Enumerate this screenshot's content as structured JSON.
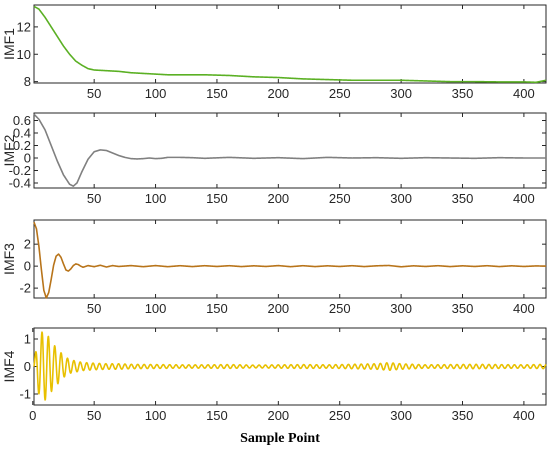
{
  "chart_data": [
    {
      "type": "line",
      "ylabel": "IMF1",
      "xlim": [
        1,
        418
      ],
      "ylim": [
        7.9,
        13.6
      ],
      "yticks": [
        8,
        10,
        12
      ],
      "xticks": [
        50,
        100,
        150,
        200,
        250,
        300,
        350,
        400
      ],
      "color": "#5bb024",
      "series": [
        {
          "x": [
            1,
            5,
            10,
            15,
            20,
            25,
            30,
            35,
            40,
            45,
            50,
            60,
            70,
            80,
            90,
            100,
            110,
            120,
            140,
            160,
            180,
            200,
            220,
            240,
            260,
            280,
            300,
            320,
            340,
            360,
            380,
            400,
            410,
            418
          ],
          "values": [
            13.5,
            13.3,
            12.7,
            12.0,
            11.3,
            10.6,
            10.0,
            9.5,
            9.2,
            8.95,
            8.85,
            8.8,
            8.75,
            8.65,
            8.6,
            8.55,
            8.5,
            8.5,
            8.5,
            8.45,
            8.35,
            8.3,
            8.2,
            8.15,
            8.1,
            8.1,
            8.1,
            8.05,
            8.0,
            8.0,
            7.98,
            7.98,
            7.95,
            8.1
          ]
        }
      ]
    },
    {
      "type": "line",
      "ylabel": "IMF2",
      "xlim": [
        1,
        418
      ],
      "ylim": [
        -0.48,
        0.72
      ],
      "yticks": [
        -0.4,
        -0.2,
        0,
        0.2,
        0.4,
        0.6
      ],
      "ytickLabels": [
        "-0.4",
        "-0.2",
        "0",
        "0.2",
        "0.4",
        "0.6"
      ],
      "xticks": [
        50,
        100,
        150,
        200,
        250,
        300,
        350,
        400
      ],
      "color": "#808080",
      "series": [
        {
          "x": [
            1,
            5,
            10,
            15,
            20,
            25,
            30,
            33,
            36,
            40,
            45,
            50,
            55,
            60,
            65,
            70,
            75,
            80,
            85,
            90,
            95,
            100,
            105,
            110,
            120,
            130,
            140,
            160,
            180,
            200,
            220,
            240,
            260,
            280,
            300,
            320,
            340,
            360,
            380,
            400,
            418
          ],
          "values": [
            0.7,
            0.62,
            0.45,
            0.2,
            -0.05,
            -0.27,
            -0.42,
            -0.45,
            -0.4,
            -0.22,
            -0.02,
            0.1,
            0.13,
            0.12,
            0.08,
            0.04,
            0.01,
            -0.01,
            -0.015,
            -0.01,
            0,
            -0.01,
            -0.005,
            0.01,
            0.01,
            0.005,
            -0.005,
            0.01,
            -0.005,
            0.005,
            -0.01,
            0.01,
            0,
            0.005,
            -0.005,
            0.005,
            0,
            -0.005,
            0.005,
            0,
            0
          ]
        }
      ]
    },
    {
      "type": "line",
      "ylabel": "IMF3",
      "xlim": [
        1,
        418
      ],
      "ylim": [
        -2.9,
        4.2
      ],
      "yticks": [
        -2,
        0,
        2
      ],
      "xticks": [
        50,
        100,
        150,
        200,
        250,
        300,
        350,
        400
      ],
      "color": "#b8741a",
      "series": [
        {
          "x": [
            1,
            3,
            5,
            7,
            9,
            11,
            13,
            15,
            17,
            19,
            21,
            23,
            25,
            27,
            29,
            31,
            33,
            35,
            37,
            39,
            41,
            45,
            50,
            55,
            60,
            65,
            70,
            80,
            90,
            100,
            110,
            120,
            130,
            140,
            150,
            160,
            170,
            180,
            190,
            200,
            210,
            220,
            230,
            240,
            250,
            260,
            270,
            280,
            290,
            300,
            310,
            320,
            330,
            340,
            350,
            360,
            370,
            380,
            390,
            400,
            410,
            418
          ],
          "values": [
            4.0,
            3.4,
            1.8,
            -0.3,
            -2.2,
            -2.9,
            -2.4,
            -1.2,
            0.1,
            0.9,
            1.1,
            0.8,
            0.2,
            -0.35,
            -0.45,
            -0.25,
            0.05,
            0.2,
            0.15,
            0.0,
            -0.1,
            0.05,
            -0.05,
            0.08,
            -0.08,
            0.05,
            -0.03,
            0.05,
            -0.05,
            0.05,
            -0.05,
            0.04,
            -0.04,
            0.04,
            -0.03,
            0.04,
            -0.04,
            0.03,
            -0.03,
            0.05,
            -0.05,
            0.04,
            -0.04,
            0.03,
            -0.03,
            0.04,
            -0.04,
            0.03,
            0.06,
            -0.06,
            0.03,
            -0.03,
            0.04,
            -0.04,
            0.03,
            -0.03,
            0.04,
            -0.04,
            0.03,
            -0.03,
            0.02,
            0.0
          ]
        }
      ]
    },
    {
      "type": "line",
      "ylabel": "IMF4",
      "xlim": [
        1,
        418
      ],
      "ylim": [
        -1.4,
        1.4
      ],
      "yticks": [
        -1,
        0,
        1
      ],
      "xticks": [
        0,
        50,
        100,
        150,
        200,
        250,
        300,
        350,
        400
      ],
      "color": "#e8c000",
      "period": 5.2,
      "envelope": {
        "x": [
          1,
          4,
          8,
          12,
          16,
          20,
          25,
          30,
          40,
          50,
          60,
          70,
          80,
          100,
          120,
          140,
          160,
          180,
          200,
          220,
          240,
          260,
          280,
          290,
          300,
          310,
          320,
          340,
          360,
          380,
          400,
          418
        ],
        "values": [
          0.2,
          0.9,
          1.3,
          1.15,
          0.85,
          0.65,
          0.4,
          0.25,
          0.15,
          0.12,
          0.1,
          0.1,
          0.08,
          0.07,
          0.06,
          0.06,
          0.07,
          0.05,
          0.06,
          0.07,
          0.06,
          0.08,
          0.1,
          0.14,
          0.1,
          0.08,
          0.06,
          0.07,
          0.08,
          0.07,
          0.06,
          0.08
        ]
      }
    }
  ],
  "xlabel": "Sample Point"
}
